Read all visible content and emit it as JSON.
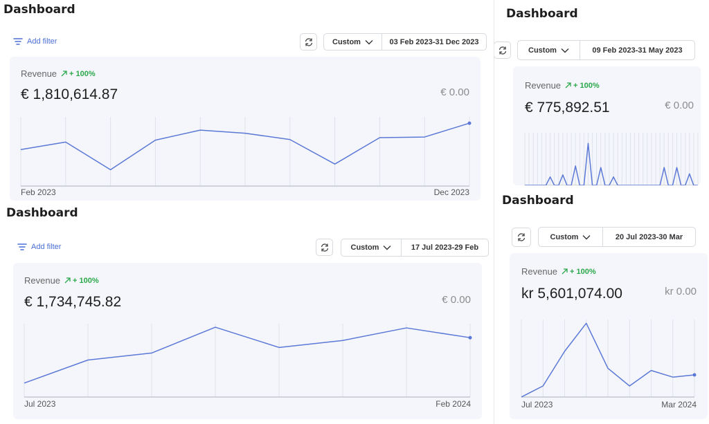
{
  "colors": {
    "accent": "#4a6fd8",
    "line": "#5b78d6",
    "trend": "#2aa84a",
    "grid": "#dfe3ea"
  },
  "icons": {
    "filter": "filter-lines-icon",
    "refresh": "refresh-icon",
    "chevron": "chevron-down-icon",
    "trend": "trend-up-arrow-icon"
  },
  "panels": [
    {
      "title": "Dashboard",
      "add_filter": "Add filter",
      "preset": "Custom",
      "date_range": "03 Feb 2023-31 Dec 2023",
      "metric_label": "Revenue",
      "trend": "+ 100%",
      "value": "€ 1,810,614.87",
      "compare_value": "€ 0.00",
      "x_start": "Feb 2023",
      "x_end": "Dec 2023"
    },
    {
      "title": "Dashboard",
      "preset": "Custom",
      "date_range": "09 Feb 2023-31 May 2023",
      "metric_label": "Revenue",
      "trend": "+ 100%",
      "value": "€ 775,892.51",
      "compare_value": "€ 0.00"
    },
    {
      "title": "Dashboard",
      "add_filter": "Add filter",
      "preset": "Custom",
      "date_range": "17 Jul 2023-29 Feb",
      "metric_label": "Revenue",
      "trend": "+ 100%",
      "value": "€ 1,734,745.82",
      "compare_value": "€ 0.00",
      "x_start": "Jul 2023",
      "x_end": "Feb 2024"
    },
    {
      "title": "Dashboard",
      "preset": "Custom",
      "date_range": "20 Jul 2023-30 Mar",
      "metric_label": "Revenue",
      "trend": "+ 100%",
      "value": "kr 5,601,074.00",
      "compare_value": "kr 0.00",
      "x_start": "Jul 2023",
      "x_end": "Mar 2024"
    }
  ],
  "chart_data": [
    {
      "type": "line",
      "series": [
        {
          "values": [
            0.58,
            0.7,
            0.26,
            0.73,
            0.89,
            0.84,
            0.74,
            0.35,
            0.77,
            0.78,
            1.0
          ]
        }
      ],
      "ylim": [
        0,
        1.1
      ],
      "grid": true,
      "x_start": "Feb 2023",
      "x_end": "Dec 2023"
    },
    {
      "type": "line",
      "series": [
        {
          "values": [
            0,
            0,
            0,
            0,
            0,
            0,
            0.16,
            0,
            0,
            0.2,
            0,
            0,
            0.37,
            0,
            0,
            0.8,
            0,
            0,
            0.34,
            0,
            0,
            0.16,
            0,
            0,
            0,
            0,
            0,
            0,
            0,
            0,
            0,
            0,
            0,
            0.34,
            0,
            0,
            0.34,
            0,
            0,
            0.22,
            0,
            0
          ]
        }
      ],
      "ylim": [
        0,
        1.0
      ],
      "grid": true
    },
    {
      "type": "line",
      "series": [
        {
          "values": [
            0.2,
            0.53,
            0.63,
            1.0,
            0.71,
            0.81,
            0.99,
            0.85
          ]
        }
      ],
      "ylim": [
        0,
        1.05
      ],
      "grid": true,
      "x_start": "Jul 2023",
      "x_end": "Feb 2024"
    },
    {
      "type": "line",
      "series": [
        {
          "values": [
            0.0,
            0.15,
            0.62,
            1.0,
            0.39,
            0.15,
            0.36,
            0.27,
            0.3
          ]
        }
      ],
      "ylim": [
        0,
        1.05
      ],
      "grid": true,
      "x_start": "Jul 2023",
      "x_end": "Mar 2024"
    }
  ]
}
